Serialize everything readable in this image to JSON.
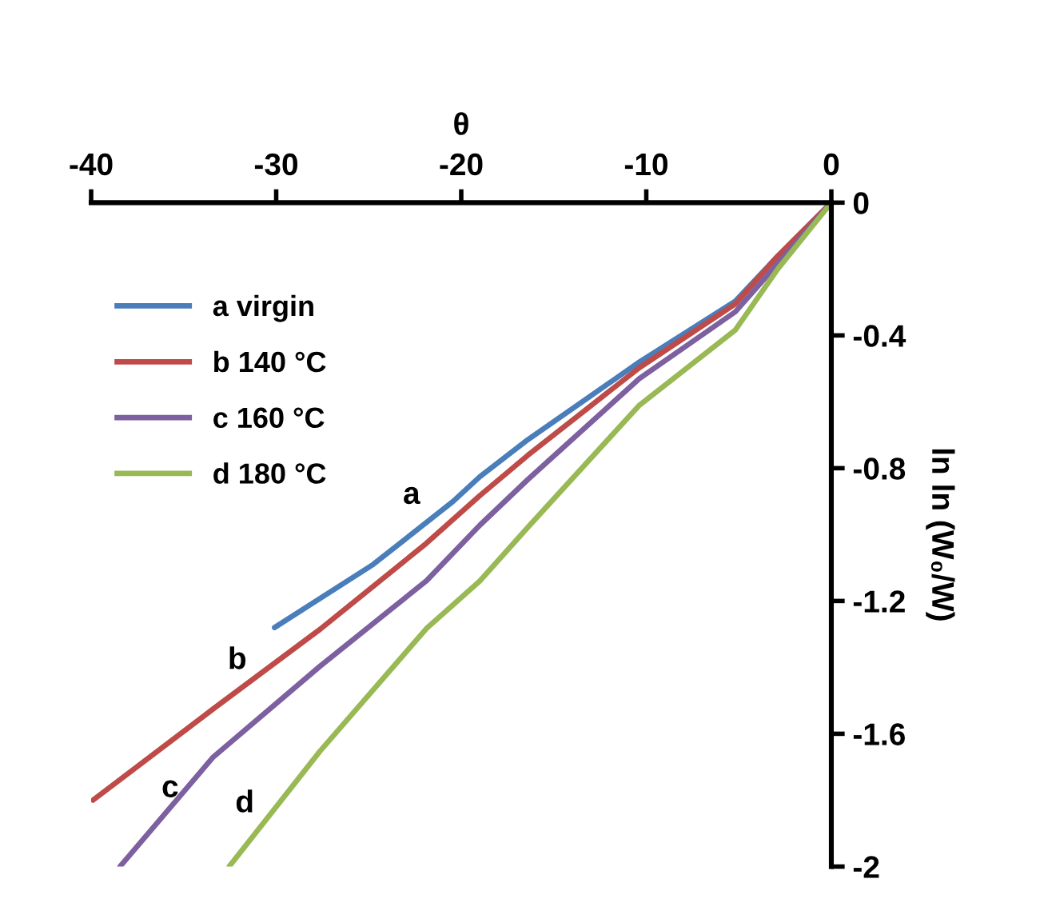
{
  "chart_data": {
    "type": "line",
    "xlabel": "θ",
    "ylabel": "ln ln (W₀/W)",
    "xlim": [
      -40,
      0
    ],
    "ylim": [
      -2,
      0
    ],
    "xticks": [
      -40,
      -30,
      -20,
      -10,
      0
    ],
    "yticks": [
      0,
      -0.4,
      -0.8,
      -1.2,
      -1.6,
      -2
    ],
    "grid": false,
    "legend": "top left",
    "marker": "none",
    "line_style": "solid",
    "series": [
      {
        "name": "a virgin",
        "color": "#4a7ebb",
        "x": [
          -30.09,
          -24.76,
          -20.44,
          -19.0,
          -16.4,
          -10.37,
          -5.19,
          -2.88,
          0
        ],
        "values": [
          -1.28,
          -1.09,
          -0.9,
          -0.826,
          -0.714,
          -0.48,
          -0.297,
          -0.16,
          0
        ]
      },
      {
        "name": "b 140 °C",
        "color": "#be4b48",
        "x": [
          -39.9,
          -33.4,
          -27.6,
          -21.9,
          -19.0,
          -16.4,
          -10.37,
          -5.19,
          -2.88,
          0
        ],
        "values": [
          -1.8,
          -1.525,
          -1.284,
          -1.027,
          -0.883,
          -0.761,
          -0.497,
          -0.305,
          -0.16,
          0
        ]
      },
      {
        "name": "c 160 °C",
        "color": "#7d60a0",
        "x": [
          -38.44,
          -33.4,
          -27.64,
          -21.88,
          -19.0,
          -16.4,
          -10.37,
          -5.19,
          -2.88,
          0
        ],
        "values": [
          -2.0,
          -1.67,
          -1.397,
          -1.139,
          -0.972,
          -0.834,
          -0.53,
          -0.329,
          -0.183,
          0
        ]
      },
      {
        "name": "d 180 °C",
        "color": "#98b954",
        "x": [
          -32.54,
          -27.64,
          -21.88,
          -19.0,
          -16.4,
          -10.37,
          -5.19,
          -2.88,
          0
        ],
        "values": [
          -2.0,
          -1.653,
          -1.283,
          -1.14,
          -0.978,
          -0.61,
          -0.384,
          -0.199,
          0
        ]
      }
    ],
    "annotations": [
      "a",
      "b",
      "c",
      "d"
    ]
  }
}
